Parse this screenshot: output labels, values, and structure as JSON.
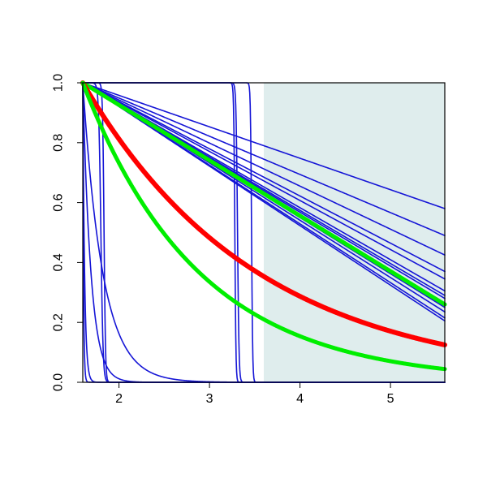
{
  "chart_data": {
    "type": "line",
    "title": "",
    "xlabel": "",
    "ylabel": "",
    "xlim": [
      1.6,
      5.6
    ],
    "ylim": [
      0,
      1
    ],
    "x_ticks": [
      {
        "value": 2,
        "label": "2"
      },
      {
        "value": 3,
        "label": "3"
      },
      {
        "value": 4,
        "label": "4"
      },
      {
        "value": 5,
        "label": "5"
      }
    ],
    "y_ticks": [
      {
        "value": 0,
        "label": "0.0"
      },
      {
        "value": 0.2,
        "label": "0.2"
      },
      {
        "value": 0.4,
        "label": "0.4"
      },
      {
        "value": 0.6,
        "label": "0.6"
      },
      {
        "value": 0.8,
        "label": "0.8"
      },
      {
        "value": 1,
        "label": "1.0"
      }
    ],
    "shaded_region": {
      "x_start": 3.6,
      "x_end": 5.6,
      "color": "#dfeded"
    },
    "grid": false,
    "x_start": 1.6,
    "x_end": 5.6,
    "series": [
      {
        "color": "#1515d6",
        "width": 1.6,
        "kind": "linear",
        "end_value": 0.58
      },
      {
        "color": "#1515d6",
        "width": 1.6,
        "kind": "linear",
        "end_value": 0.49
      },
      {
        "color": "#1515d6",
        "width": 1.6,
        "kind": "linear",
        "end_value": 0.425
      },
      {
        "color": "#1515d6",
        "width": 1.6,
        "kind": "linear",
        "end_value": 0.37
      },
      {
        "color": "#1515d6",
        "width": 1.6,
        "kind": "linear",
        "end_value": 0.345
      },
      {
        "color": "#1515d6",
        "width": 1.6,
        "kind": "linear",
        "end_value": 0.305
      },
      {
        "color": "#1515d6",
        "width": 1.6,
        "kind": "linear",
        "end_value": 0.29
      },
      {
        "color": "#1515d6",
        "width": 1.6,
        "kind": "linear",
        "end_value": 0.28
      },
      {
        "color": "#1515d6",
        "width": 1.6,
        "kind": "linear",
        "end_value": 0.25
      },
      {
        "color": "#1515d6",
        "width": 1.6,
        "kind": "linear",
        "end_value": 0.235
      },
      {
        "color": "#1515d6",
        "width": 1.6,
        "kind": "linear",
        "end_value": 0.215
      },
      {
        "color": "#1515d6",
        "width": 1.6,
        "kind": "linear",
        "end_value": 0.205
      },
      {
        "color": "#1515d6",
        "width": 1.6,
        "kind": "decay",
        "scale": 0.22
      },
      {
        "color": "#1515d6",
        "width": 1.6,
        "kind": "decay",
        "scale": 0.09
      },
      {
        "color": "#1515d6",
        "width": 1.6,
        "kind": "decay",
        "scale": 0.02
      },
      {
        "color": "#1515d6",
        "width": 1.6,
        "kind": "decay",
        "scale": 0.008
      },
      {
        "color": "#1515d6",
        "width": 1.6,
        "kind": "cliff",
        "center": 1.8,
        "steep": 0.012
      },
      {
        "color": "#1515d6",
        "width": 1.6,
        "kind": "cliff",
        "center": 1.835,
        "steep": 0.008
      },
      {
        "color": "#1515d6",
        "width": 1.6,
        "kind": "cliff",
        "center": 3.28,
        "steep": 0.006
      },
      {
        "color": "#1515d6",
        "width": 1.6,
        "kind": "cliff",
        "center": 3.31,
        "steep": 0.008
      },
      {
        "color": "#1515d6",
        "width": 1.6,
        "kind": "cliff",
        "center": 3.465,
        "steep": 0.006
      },
      {
        "color": "#00ee00",
        "width": 5,
        "kind": "linear",
        "end_value": 0.26
      },
      {
        "color": "#ff0000",
        "width": 6,
        "kind": "exp",
        "rate": 0.52
      },
      {
        "color": "#00ee00",
        "width": 5,
        "kind": "exp",
        "rate": 0.78
      }
    ]
  }
}
